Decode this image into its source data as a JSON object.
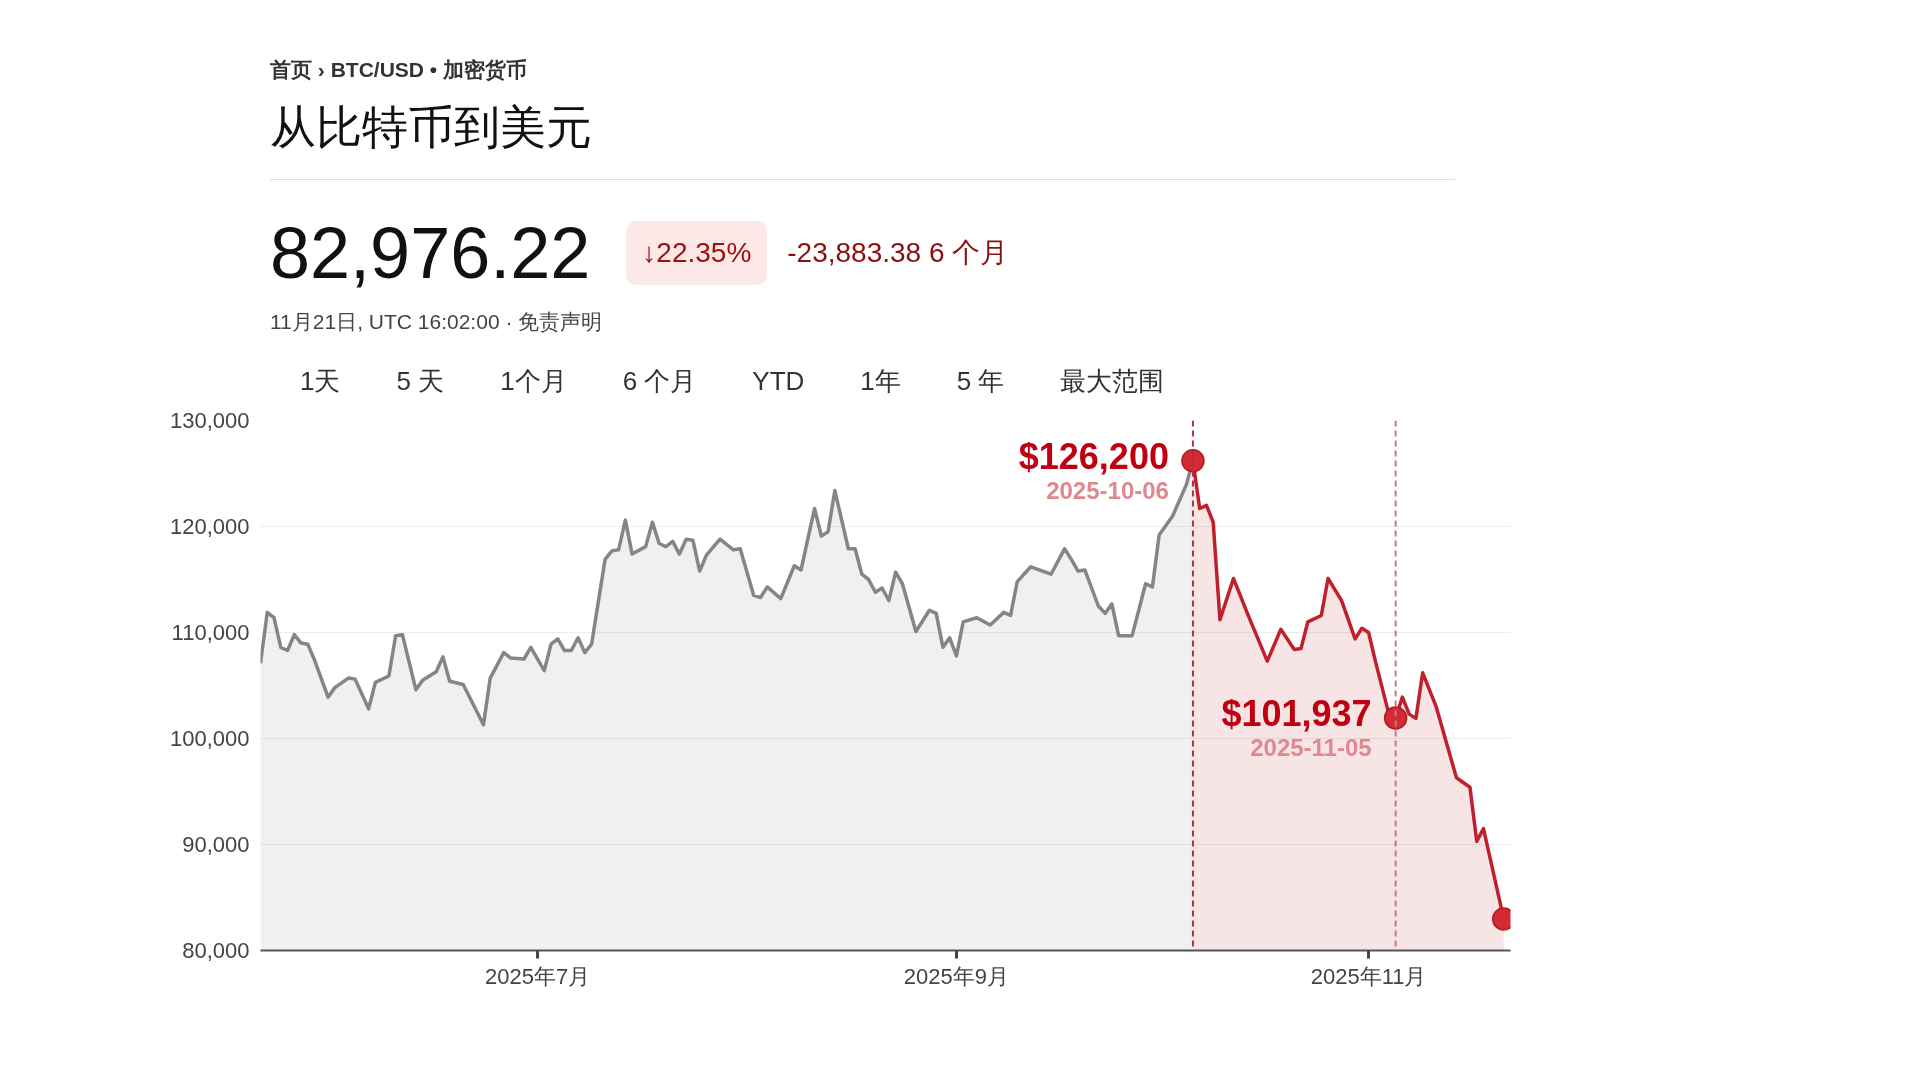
{
  "chart_data": {
    "type": "area",
    "title": "从比特币到美元",
    "annotations": [
      "首页 › BTC/USD • 加密货币",
      "82,976.22",
      "↓22.35%",
      "-23,883.38 6 个月",
      "11月21日, UTC 16:02:00 · 免责声明",
      "1天",
      "5 天",
      "1个月",
      "6 个月",
      "YTD",
      "1年",
      "5 年",
      "最大范围",
      {
        "text": "$126,200",
        "x": "2025-10-06",
        "y": 126200
      },
      {
        "text": "2025-10-06",
        "x": "2025-10-06",
        "y": 126200
      },
      {
        "text": "$101,937",
        "x": "2025-11-05",
        "y": 101937
      },
      {
        "text": "2025-11-05",
        "x": "2025-11-05",
        "y": 101937
      }
    ],
    "xlim": [
      "2025-05-21",
      "2025-11-22"
    ],
    "xticks": [
      {
        "value": "2025-07-01",
        "label": "2025年7月"
      },
      {
        "value": "2025-09-01",
        "label": "2025年9月"
      },
      {
        "value": "2025-11-01",
        "label": "2025年11月"
      }
    ],
    "ylim": [
      80000,
      130000
    ],
    "yticks": [
      {
        "value": 80000,
        "label": "80,000"
      },
      {
        "value": 90000,
        "label": "90,000"
      },
      {
        "value": 100000,
        "label": "100,000"
      },
      {
        "value": 110000,
        "label": "110,000"
      },
      {
        "value": 120000,
        "label": "120,000"
      },
      {
        "value": 130000,
        "label": "130,000"
      }
    ],
    "grid": "y",
    "ref_lines": [
      {
        "axis": "x",
        "value": "2025-10-06",
        "color": "#a8323c",
        "line_style": "dashed"
      },
      {
        "axis": "x",
        "value": "2025-11-05",
        "color": "#c87880",
        "line_style": "dashed"
      }
    ],
    "series": [
      {
        "color": "#858585",
        "x": [
          "2025-05-21",
          "2025-05-22",
          "2025-05-23",
          "2025-05-24",
          "2025-05-25",
          "2025-05-26",
          "2025-05-27",
          "2025-05-28",
          "2025-05-29",
          "2025-05-31",
          "2025-06-01",
          "2025-06-03",
          "2025-06-04",
          "2025-06-06",
          "2025-06-07",
          "2025-06-09",
          "2025-06-10",
          "2025-06-11",
          "2025-06-13",
          "2025-06-14",
          "2025-06-16",
          "2025-06-17",
          "2025-06-18",
          "2025-06-20",
          "2025-06-23",
          "2025-06-24",
          "2025-06-26",
          "2025-06-27",
          "2025-06-29",
          "2025-06-30",
          "2025-07-02",
          "2025-07-03",
          "2025-07-04",
          "2025-07-05",
          "2025-07-06",
          "2025-07-07",
          "2025-07-08",
          "2025-07-09",
          "2025-07-11",
          "2025-07-12",
          "2025-07-13",
          "2025-07-14",
          "2025-07-15",
          "2025-07-17",
          "2025-07-18",
          "2025-07-19",
          "2025-07-20",
          "2025-07-21",
          "2025-07-22",
          "2025-07-23",
          "2025-07-24",
          "2025-07-25",
          "2025-07-26",
          "2025-07-28",
          "2025-07-30",
          "2025-07-31",
          "2025-08-02",
          "2025-08-03",
          "2025-08-04",
          "2025-08-06",
          "2025-08-08",
          "2025-08-09",
          "2025-08-11",
          "2025-08-12",
          "2025-08-13",
          "2025-08-14",
          "2025-08-16",
          "2025-08-17",
          "2025-08-18",
          "2025-08-19",
          "2025-08-20",
          "2025-08-21",
          "2025-08-22",
          "2025-08-23",
          "2025-08-24",
          "2025-08-26",
          "2025-08-28",
          "2025-08-29",
          "2025-08-30",
          "2025-08-31",
          "2025-09-01",
          "2025-09-02",
          "2025-09-04",
          "2025-09-06",
          "2025-09-08",
          "2025-09-09",
          "2025-09-10",
          "2025-09-12",
          "2025-09-15",
          "2025-09-17",
          "2025-09-18",
          "2025-09-19",
          "2025-09-20",
          "2025-09-22",
          "2025-09-23",
          "2025-09-24",
          "2025-09-25",
          "2025-09-27",
          "2025-09-29",
          "2025-09-30",
          "2025-10-01",
          "2025-10-03",
          "2025-10-05",
          "2025-10-06"
        ],
        "values": [
          107100,
          111900,
          111400,
          108600,
          108300,
          109800,
          109000,
          108900,
          107400,
          103900,
          104800,
          105700,
          105600,
          102800,
          105300,
          105900,
          109700,
          109800,
          104600,
          105500,
          106300,
          107700,
          105400,
          105100,
          101300,
          105700,
          108100,
          107600,
          107500,
          108600,
          106400,
          108900,
          109400,
          108300,
          108300,
          109500,
          108100,
          108900,
          116900,
          117700,
          117800,
          120600,
          117400,
          118100,
          120400,
          118400,
          118100,
          118600,
          117400,
          118800,
          118700,
          115800,
          117300,
          118800,
          117800,
          117900,
          113500,
          113300,
          114300,
          113200,
          116300,
          115900,
          121700,
          119100,
          119500,
          123400,
          117900,
          117900,
          115500,
          115000,
          113800,
          114200,
          113000,
          115700,
          114600,
          110100,
          112100,
          111800,
          108600,
          109500,
          107800,
          111000,
          111400,
          110700,
          111900,
          111600,
          114800,
          116200,
          115500,
          117900,
          116900,
          115800,
          115900,
          112500,
          111800,
          112700,
          109700,
          109700,
          114600,
          114300,
          119200,
          121000,
          123900,
          126200
        ]
      },
      {
        "color": "#c0202c",
        "x": [
          "2025-10-06",
          "2025-10-07",
          "2025-10-08",
          "2025-10-09",
          "2025-10-10",
          "2025-10-12",
          "2025-10-14",
          "2025-10-17",
          "2025-10-19",
          "2025-10-21",
          "2025-10-22",
          "2025-10-23",
          "2025-10-25",
          "2025-10-26",
          "2025-10-28",
          "2025-10-30",
          "2025-10-31",
          "2025-11-01",
          "2025-11-02",
          "2025-11-03",
          "2025-11-04",
          "2025-11-05",
          "2025-11-06",
          "2025-11-07",
          "2025-11-08",
          "2025-11-09",
          "2025-11-11",
          "2025-11-14",
          "2025-11-16",
          "2025-11-17",
          "2025-11-18",
          "2025-11-21"
        ],
        "values": [
          126200,
          121700,
          122000,
          120400,
          111200,
          115100,
          111900,
          107300,
          110300,
          108400,
          108500,
          111000,
          111600,
          115100,
          113000,
          109400,
          110400,
          110000,
          107300,
          104800,
          102300,
          101937,
          103900,
          102300,
          101900,
          106200,
          103000,
          96300,
          95400,
          90300,
          91500,
          82976.22
        ]
      },
      {
        "type": "scatter",
        "color": "#d42a33",
        "marker": "circle",
        "x": [
          "2025-10-06",
          "2025-11-05",
          "2025-11-21"
        ],
        "values": [
          126200,
          101937,
          82976.22
        ]
      }
    ]
  }
}
